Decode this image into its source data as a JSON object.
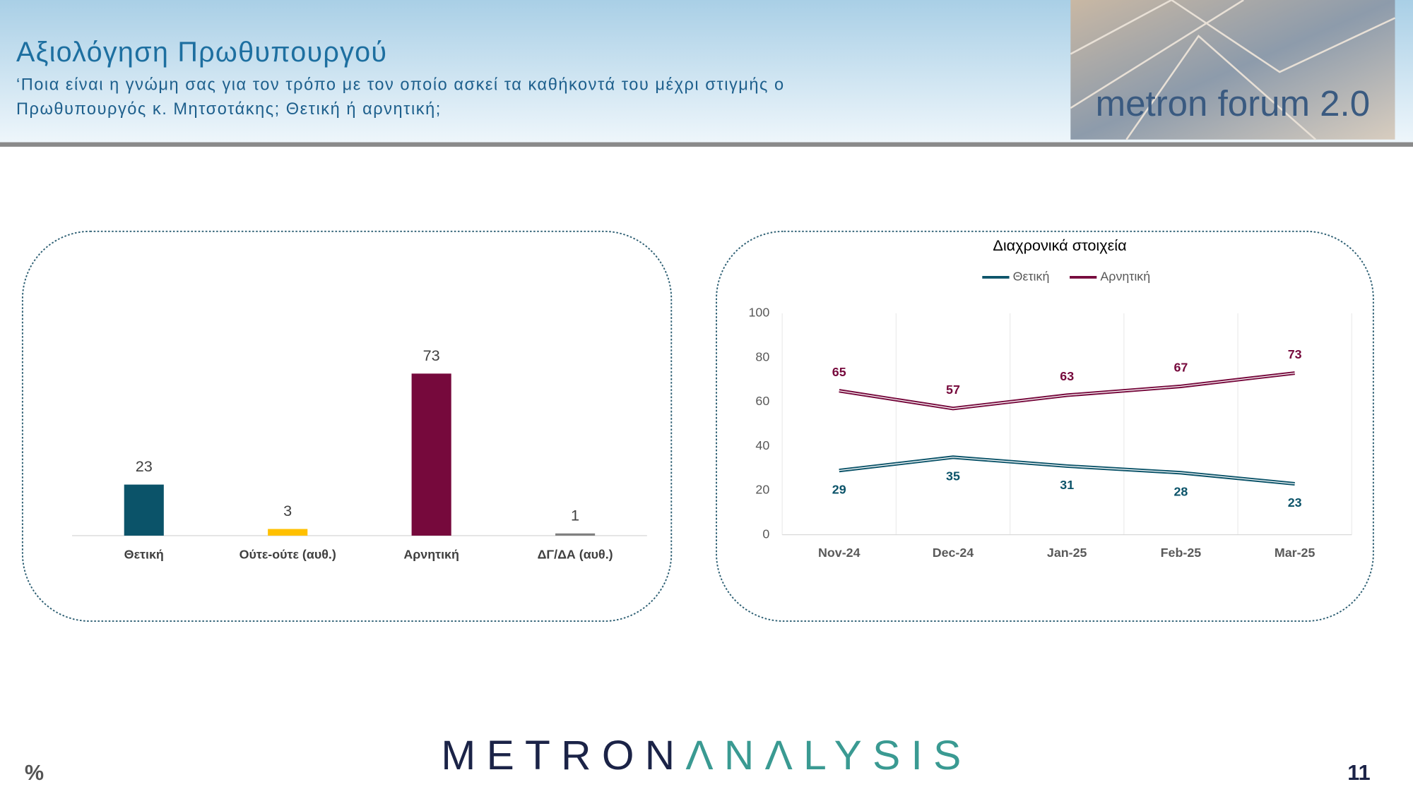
{
  "header": {
    "title": "Αξιολόγηση Πρωθυπουργού",
    "subtitle_line1": "‘Ποια είναι η γνώμη σας για τον τρόπο με τον οποίο ασκεί τα καθήκοντά του μέχρι στιγμής ο",
    "subtitle_line2": "Πρωθυπουργός κ. Μητσοτάκης; Θετική ή αρνητική;",
    "banner": "metron forum 2.0"
  },
  "chart_data": [
    {
      "type": "bar",
      "categories": [
        "Θετική",
        "Ούτε-ούτε (αυθ.)",
        "Αρνητική",
        "ΔΓ/ΔΑ (αυθ.)"
      ],
      "values": [
        23,
        3,
        73,
        1
      ],
      "colors": [
        "#0b5369",
        "#ffc000",
        "#76093c",
        "#7f7f7f"
      ]
    },
    {
      "type": "line",
      "title": "Διαχρονικά στοιχεία",
      "categories": [
        "Nov-24",
        "Dec-24",
        "Jan-25",
        "Feb-25",
        "Mar-25"
      ],
      "series": [
        {
          "name": "Θετική",
          "color": "#0b5369",
          "values": [
            29,
            35,
            31,
            28,
            23
          ]
        },
        {
          "name": "Αρνητική",
          "color": "#76093c",
          "values": [
            65,
            57,
            63,
            67,
            73
          ]
        }
      ],
      "ylim": [
        0,
        100
      ],
      "yticks": [
        0,
        20,
        40,
        60,
        80,
        100
      ],
      "legend": "top"
    }
  ],
  "footer": {
    "unit": "%",
    "logo_left": "METRON",
    "logo_right": "ΛNΛLYSIS",
    "page": "11"
  }
}
